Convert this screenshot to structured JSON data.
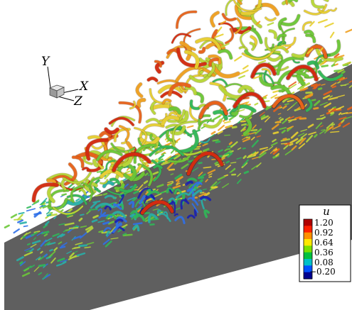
{
  "axes_triad": {
    "labels": {
      "y": "Y",
      "x": "X",
      "z": "Z"
    }
  },
  "legend": {
    "variable": "u",
    "ticks": [
      "1.20",
      "0.92",
      "0.64",
      "0.36",
      "0.08",
      "−0.20"
    ],
    "colors": [
      "#b00000",
      "#ff2000",
      "#ff9000",
      "#ffe800",
      "#7ae000",
      "#00c040",
      "#00c0c8",
      "#0050ff",
      "#000090"
    ]
  },
  "scene": {
    "plate_color": "#5f5f5f",
    "vortex_colors": [
      "#d42a10",
      "#e8621a",
      "#f0a020",
      "#e8d030",
      "#b8d838",
      "#6cc838",
      "#30b858",
      "#28b0a8",
      "#3070e8",
      "#1a20b0"
    ]
  }
}
